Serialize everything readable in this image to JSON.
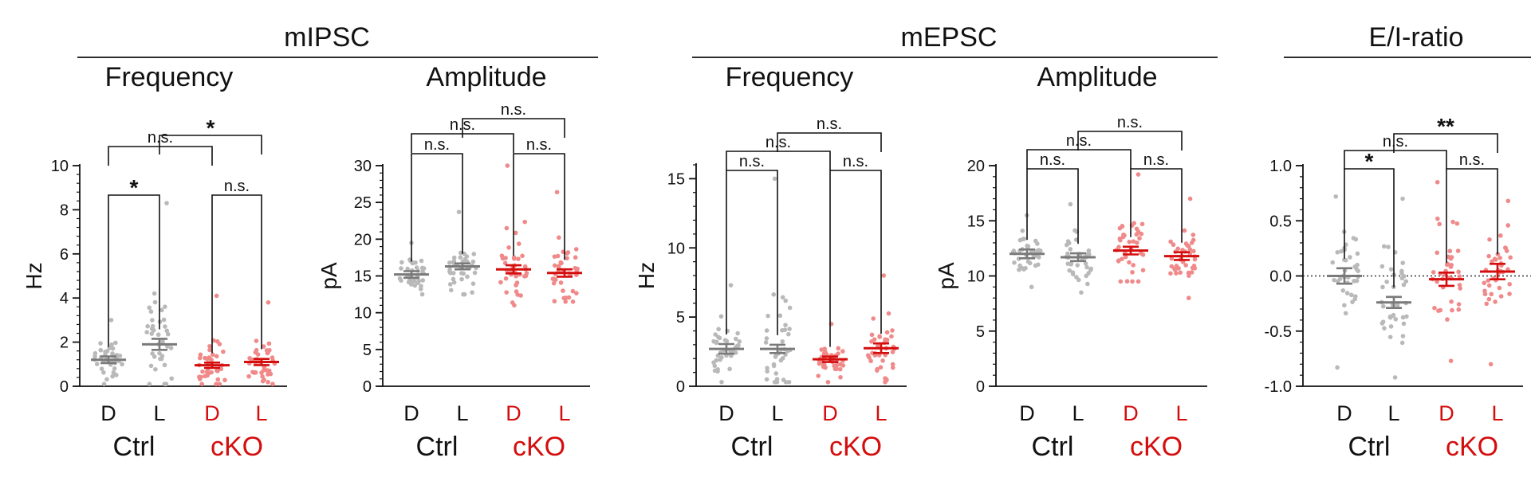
{
  "colors": {
    "ctrl": "#111111",
    "ko": "#d40d0d",
    "ctrl_dots": "#b9b9b9",
    "ko_dots": "#f08a8a",
    "ctrl_mean": "#7a7a7a",
    "ko_mean": "#d40d0d"
  },
  "sections": [
    {
      "title": "mIPSC"
    },
    {
      "title": "mEPSC"
    },
    {
      "title": "E/I-ratio"
    }
  ],
  "chart_data": [
    {
      "type": "scatter",
      "section": "mIPSC",
      "title": "Frequency",
      "ylabel": "Hz",
      "ylim": [
        0,
        10
      ],
      "yticks": [
        "0",
        "2",
        "4",
        "6",
        "8",
        "10"
      ],
      "categories": [
        "D",
        "L",
        "D",
        "L"
      ],
      "groups": [
        "Ctrl",
        "cKO"
      ],
      "series": [
        {
          "name": "Ctrl D",
          "mean": 1.2,
          "sem": 0.15,
          "max": 3.0,
          "min": 0.1
        },
        {
          "name": "Ctrl L",
          "mean": 1.9,
          "sem": 0.25,
          "max": 8.3,
          "min": 0.1
        },
        {
          "name": "cKO D",
          "mean": 0.95,
          "sem": 0.12,
          "max": 4.1,
          "min": 0.1
        },
        {
          "name": "cKO L",
          "mean": 1.1,
          "sem": 0.14,
          "max": 3.8,
          "min": 0.1
        }
      ],
      "brackets": [
        {
          "from": 0,
          "to": 1,
          "label": "*"
        },
        {
          "from": 2,
          "to": 3,
          "label": "n.s."
        },
        {
          "from": 0,
          "to": 2,
          "label": "n.s."
        },
        {
          "from": 1,
          "to": 3,
          "label": "*"
        }
      ]
    },
    {
      "type": "scatter",
      "section": "mIPSC",
      "title": "Amplitude",
      "ylabel": "pA",
      "ylim": [
        0,
        30
      ],
      "yticks": [
        "0",
        "5",
        "10",
        "15",
        "20",
        "25",
        "30"
      ],
      "categories": [
        "D",
        "L",
        "D",
        "L"
      ],
      "groups": [
        "Ctrl",
        "cKO"
      ],
      "series": [
        {
          "name": "Ctrl D",
          "mean": 15.2,
          "sem": 0.45,
          "max": 19.5,
          "min": 12.5
        },
        {
          "name": "Ctrl L",
          "mean": 16.3,
          "sem": 0.4,
          "max": 23.7,
          "min": 12.5
        },
        {
          "name": "cKO D",
          "mean": 15.9,
          "sem": 0.55,
          "max": 30.0,
          "min": 11.0
        },
        {
          "name": "cKO L",
          "mean": 15.4,
          "sem": 0.5,
          "max": 26.4,
          "min": 11.5
        }
      ],
      "brackets": [
        {
          "from": 0,
          "to": 1,
          "label": "n.s."
        },
        {
          "from": 2,
          "to": 3,
          "label": "n.s."
        },
        {
          "from": 0,
          "to": 2,
          "label": "n.s."
        },
        {
          "from": 1,
          "to": 3,
          "label": "n.s."
        }
      ]
    },
    {
      "type": "scatter",
      "section": "mEPSC",
      "title": "Frequency",
      "ylabel": "Hz",
      "ylim": [
        0,
        16
      ],
      "yticks": [
        "0",
        "5",
        "10",
        "15"
      ],
      "ytick_values": [
        0,
        5,
        10,
        15
      ],
      "categories": [
        "D",
        "L",
        "D",
        "L"
      ],
      "groups": [
        "Ctrl",
        "cKO"
      ],
      "series": [
        {
          "name": "Ctrl D",
          "mean": 2.7,
          "sem": 0.35,
          "max": 7.3,
          "min": 0.3
        },
        {
          "name": "Ctrl L",
          "mean": 2.7,
          "sem": 0.3,
          "max": 15.0,
          "min": 0.3
        },
        {
          "name": "cKO D",
          "mean": 1.95,
          "sem": 0.2,
          "max": 4.5,
          "min": 0.3
        },
        {
          "name": "cKO L",
          "mean": 2.75,
          "sem": 0.35,
          "max": 8.0,
          "min": 0.3
        }
      ],
      "brackets": [
        {
          "from": 0,
          "to": 1,
          "label": "n.s."
        },
        {
          "from": 2,
          "to": 3,
          "label": "n.s."
        },
        {
          "from": 0,
          "to": 2,
          "label": "n.s."
        },
        {
          "from": 1,
          "to": 3,
          "label": "n.s."
        }
      ]
    },
    {
      "type": "scatter",
      "section": "mEPSC",
      "title": "Amplitude",
      "ylabel": "pA",
      "ylim": [
        0,
        20
      ],
      "yticks": [
        "0",
        "5",
        "10",
        "15",
        "20"
      ],
      "categories": [
        "D",
        "L",
        "D",
        "L"
      ],
      "groups": [
        "Ctrl",
        "cKO"
      ],
      "series": [
        {
          "name": "Ctrl D",
          "mean": 12.0,
          "sem": 0.4,
          "max": 15.5,
          "min": 9.0
        },
        {
          "name": "Ctrl L",
          "mean": 11.7,
          "sem": 0.35,
          "max": 16.5,
          "min": 8.5
        },
        {
          "name": "cKO D",
          "mean": 12.3,
          "sem": 0.35,
          "max": 19.2,
          "min": 9.5
        },
        {
          "name": "cKO L",
          "mean": 11.8,
          "sem": 0.35,
          "max": 17.0,
          "min": 8.0
        }
      ],
      "brackets": [
        {
          "from": 0,
          "to": 1,
          "label": "n.s."
        },
        {
          "from": 2,
          "to": 3,
          "label": "n.s."
        },
        {
          "from": 0,
          "to": 2,
          "label": "n.s."
        },
        {
          "from": 1,
          "to": 3,
          "label": "n.s."
        }
      ]
    },
    {
      "type": "scatter",
      "section": "E/I-ratio",
      "title": "",
      "ylabel": "",
      "ylim": [
        -1.0,
        1.0
      ],
      "yticks": [
        "-1.0",
        "-0.5",
        "0.0",
        "0.5",
        "1.0"
      ],
      "ytick_values": [
        -1.0,
        -0.5,
        0.0,
        0.5,
        1.0
      ],
      "zero_line": true,
      "categories": [
        "D",
        "L",
        "D",
        "L"
      ],
      "groups": [
        "Ctrl",
        "cKO"
      ],
      "series": [
        {
          "name": "Ctrl D",
          "mean": 0.0,
          "sem": 0.07,
          "max": 0.72,
          "min": -0.83
        },
        {
          "name": "Ctrl L",
          "mean": -0.24,
          "sem": 0.05,
          "max": 0.7,
          "min": -0.92
        },
        {
          "name": "cKO D",
          "mean": -0.03,
          "sem": 0.06,
          "max": 0.85,
          "min": -0.77
        },
        {
          "name": "cKO L",
          "mean": 0.04,
          "sem": 0.07,
          "max": 0.68,
          "min": -0.8
        }
      ],
      "brackets": [
        {
          "from": 0,
          "to": 1,
          "label": "*"
        },
        {
          "from": 2,
          "to": 3,
          "label": "n.s."
        },
        {
          "from": 0,
          "to": 2,
          "label": "n.s."
        },
        {
          "from": 1,
          "to": 3,
          "label": "**"
        }
      ]
    }
  ]
}
